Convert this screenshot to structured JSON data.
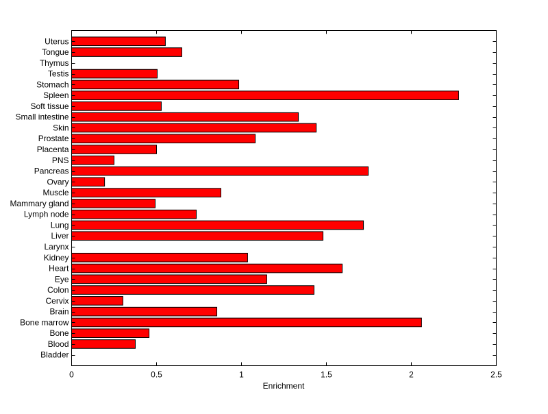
{
  "chart_data": {
    "type": "bar",
    "orientation": "horizontal",
    "title": "",
    "xlabel": "Enrichment",
    "ylabel": "",
    "xlim": [
      0,
      2.5
    ],
    "ylim": [
      0,
      31
    ],
    "xticks": [
      "0",
      "0.5",
      "1",
      "1.5",
      "2",
      "2.5"
    ],
    "xtick_values": [
      0,
      0.5,
      1,
      1.5,
      2,
      2.5
    ],
    "grid": false,
    "bar_color": "#ff0000",
    "categories": [
      "Bladder",
      "Blood",
      "Bone",
      "Bone marrow",
      "Brain",
      "Cervix",
      "Colon",
      "Eye",
      "Heart",
      "Kidney",
      "Larynx",
      "Liver",
      "Lung",
      "Lymph node",
      "Mammary gland",
      "Muscle",
      "Ovary",
      "Pancreas",
      "PNS",
      "Placenta",
      "Prostate",
      "Skin",
      "Small intestine",
      "Soft tissue",
      "Spleen",
      "Stomach",
      "Testis",
      "Thymus",
      "Tongue",
      "Uterus"
    ],
    "values": [
      0,
      0.375,
      0.456,
      2.06,
      0.855,
      0.302,
      1.427,
      1.149,
      1.593,
      1.036,
      0,
      1.48,
      1.718,
      0.734,
      0.492,
      0.879,
      0.194,
      1.746,
      0.25,
      0.5,
      1.081,
      1.44,
      1.335,
      0.528,
      2.278,
      0.984,
      0.504,
      0,
      0.649,
      0.552
    ]
  }
}
